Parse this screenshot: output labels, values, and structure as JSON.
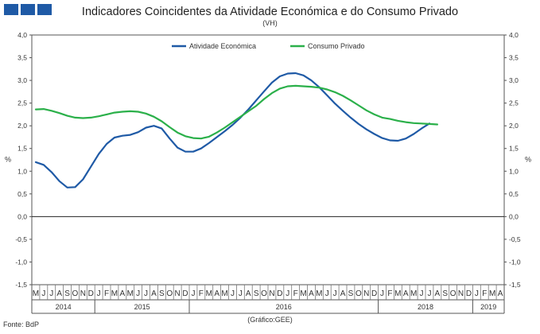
{
  "header": {
    "title": "Indicadores Coincidentes da Atividade Económica e do Consumo Privado",
    "subtitle": "(VH)",
    "logo_color": "#1f5aa6"
  },
  "footer": {
    "source": "Fonte: BdP",
    "credit": "(Gráfico:GEE)"
  },
  "chart_data": {
    "type": "line",
    "title": "Indicadores Coincidentes da Atividade Económica e do Consumo Privado",
    "subtitle": "(VH)",
    "ylabel_left": "%",
    "ylabel_right": "%",
    "ylim": [
      -1.5,
      4.0
    ],
    "yticks": [
      "4,0",
      "3,5",
      "3,0",
      "2,5",
      "2,0",
      "1,5",
      "1,0",
      "0,5",
      "0,0",
      "-0,5",
      "-1,0",
      "-1,5"
    ],
    "ytick_values": [
      4.0,
      3.5,
      3.0,
      2.5,
      2.0,
      1.5,
      1.0,
      0.5,
      0.0,
      -0.5,
      -1.0,
      -1.5
    ],
    "legend_position": "top-center",
    "x_months": [
      "M",
      "J",
      "J",
      "A",
      "S",
      "O",
      "N",
      "D",
      "J",
      "F",
      "M",
      "A",
      "M",
      "J",
      "J",
      "A",
      "S",
      "O",
      "N",
      "D",
      "J",
      "F",
      "M",
      "A",
      "M",
      "J",
      "J",
      "A",
      "S",
      "O",
      "N",
      "D",
      "J",
      "F",
      "M",
      "A",
      "M",
      "J",
      "J",
      "A",
      "S",
      "O",
      "N",
      "D",
      "J",
      "F",
      "M",
      "A",
      "M",
      "J",
      "J",
      "A",
      "S",
      "O",
      "N",
      "D",
      "J",
      "F",
      "M",
      "A"
    ],
    "year_labels": [
      {
        "label": "2014",
        "start": 0,
        "end": 7
      },
      {
        "label": "2015",
        "start": 8,
        "end": 19
      },
      {
        "label": "2016",
        "start": 20,
        "end": 43
      },
      {
        "label": "2018",
        "start": 44,
        "end": 55
      },
      {
        "label": "2019",
        "start": 56,
        "end": 59
      }
    ],
    "series": [
      {
        "name": "Atividade Económica",
        "color": "#1f5aa6",
        "values": [
          1.2,
          1.14,
          0.98,
          0.78,
          0.64,
          0.65,
          0.82,
          1.1,
          1.38,
          1.6,
          1.74,
          1.78,
          1.8,
          1.86,
          1.96,
          2.0,
          1.94,
          1.72,
          1.52,
          1.43,
          1.43,
          1.5,
          1.62,
          1.75,
          1.88,
          2.02,
          2.18,
          2.36,
          2.56,
          2.76,
          2.95,
          3.09,
          3.15,
          3.16,
          3.11,
          3.0,
          2.85,
          2.67,
          2.49,
          2.33,
          2.18,
          2.04,
          1.92,
          1.82,
          1.73,
          1.68,
          1.67,
          1.72,
          1.82,
          1.94,
          2.05
        ]
      },
      {
        "name": "Consumo Privado",
        "color": "#2bb04a",
        "values": [
          2.36,
          2.37,
          2.33,
          2.28,
          2.22,
          2.18,
          2.17,
          2.18,
          2.21,
          2.25,
          2.29,
          2.31,
          2.32,
          2.31,
          2.27,
          2.2,
          2.1,
          1.97,
          1.85,
          1.77,
          1.73,
          1.72,
          1.76,
          1.85,
          1.96,
          2.08,
          2.2,
          2.32,
          2.44,
          2.59,
          2.72,
          2.82,
          2.87,
          2.88,
          2.87,
          2.86,
          2.84,
          2.8,
          2.74,
          2.66,
          2.56,
          2.45,
          2.34,
          2.25,
          2.18,
          2.15,
          2.11,
          2.08,
          2.06,
          2.05,
          2.04,
          2.03
        ]
      }
    ]
  }
}
